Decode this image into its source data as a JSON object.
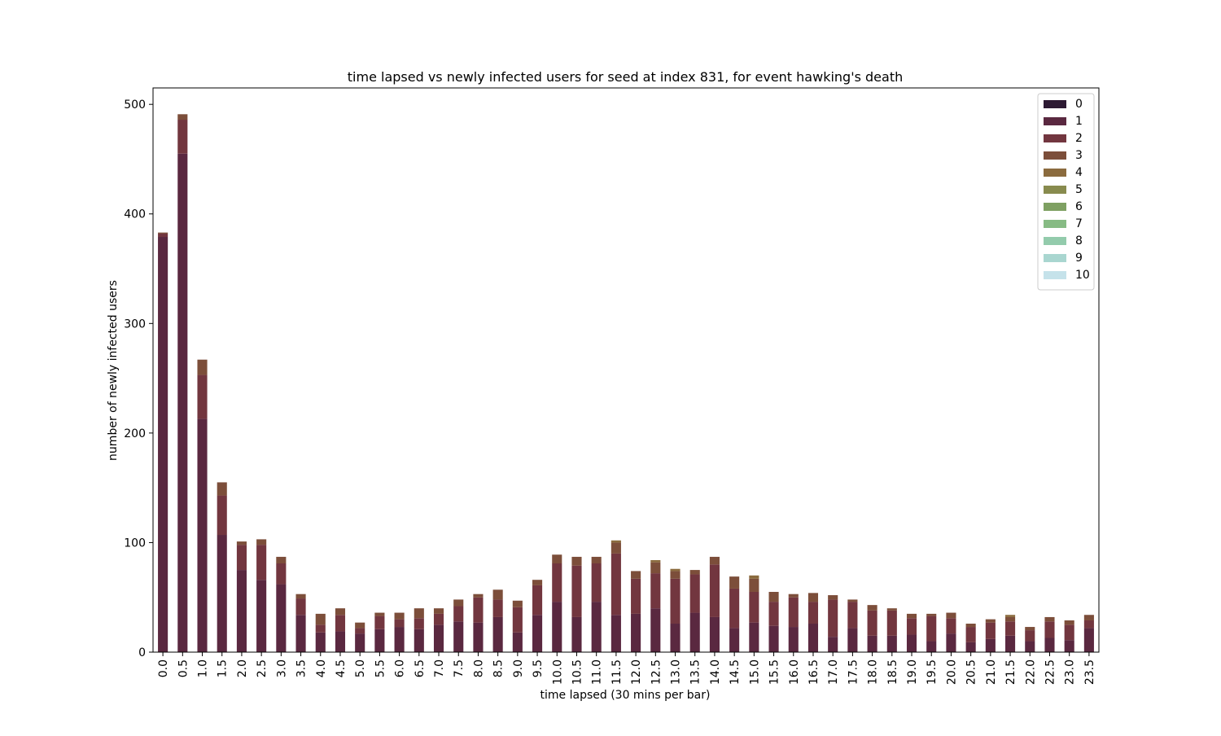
{
  "chart_data": {
    "type": "bar",
    "stacked": true,
    "title": "time lapsed vs newly infected users for seed at index 831, for event hawking's death",
    "xlabel": "time lapsed (30 mins per bar)",
    "ylabel": "number of newly infected users",
    "ylim": [
      0,
      515
    ],
    "yticks": [
      0,
      100,
      200,
      300,
      400,
      500
    ],
    "legend_position": "top-right",
    "categories": [
      "0.0",
      "0.5",
      "1.0",
      "1.5",
      "2.0",
      "2.5",
      "3.0",
      "3.5",
      "4.0",
      "4.5",
      "5.0",
      "5.5",
      "6.0",
      "6.5",
      "7.0",
      "7.5",
      "8.0",
      "8.5",
      "9.0",
      "9.5",
      "10.0",
      "10.5",
      "11.0",
      "11.5",
      "12.0",
      "12.5",
      "13.0",
      "13.5",
      "14.0",
      "14.5",
      "15.0",
      "15.5",
      "16.0",
      "16.5",
      "17.0",
      "17.5",
      "18.0",
      "18.5",
      "19.0",
      "19.5",
      "20.0",
      "20.5",
      "21.0",
      "21.5",
      "22.0",
      "22.5",
      "23.0",
      "23.5"
    ],
    "series": [
      {
        "name": "0",
        "color": "#2d1a33",
        "values": [
          0,
          0,
          0,
          0,
          0,
          0,
          0,
          0,
          0,
          0,
          0,
          0,
          0,
          0,
          0,
          0,
          0,
          0,
          0,
          0,
          0,
          0,
          0,
          0,
          0,
          0,
          0,
          0,
          0,
          0,
          0,
          0,
          0,
          0,
          0,
          0,
          0,
          0,
          0,
          0,
          0,
          0,
          0,
          0,
          0,
          0,
          0,
          0
        ]
      },
      {
        "name": "1",
        "color": "#5a2840",
        "values": [
          379,
          455,
          213,
          107,
          75,
          66,
          62,
          34,
          18,
          19,
          17,
          21,
          23,
          21,
          25,
          28,
          27,
          32,
          18,
          34,
          46,
          32,
          46,
          34,
          35,
          40,
          26,
          36,
          32,
          22,
          27,
          24,
          23,
          26,
          14,
          22,
          15,
          15,
          16,
          10,
          17,
          9,
          12,
          15,
          10,
          13,
          11,
          22
        ]
      },
      {
        "name": "2",
        "color": "#72363f",
        "values": [
          3,
          31,
          40,
          36,
          23,
          32,
          19,
          15,
          7,
          15,
          5,
          12,
          7,
          10,
          10,
          14,
          23,
          16,
          23,
          27,
          35,
          47,
          35,
          56,
          32,
          32,
          41,
          35,
          48,
          36,
          28,
          22,
          27,
          20,
          34,
          24,
          23,
          23,
          15,
          23,
          14,
          14,
          15,
          13,
          10,
          15,
          14,
          7
        ]
      },
      {
        "name": "3",
        "color": "#7c4e3a",
        "values": [
          1,
          5,
          14,
          12,
          3,
          5,
          6,
          4,
          10,
          6,
          5,
          3,
          6,
          9,
          5,
          6,
          3,
          9,
          6,
          5,
          8,
          8,
          6,
          10,
          7,
          10,
          7,
          4,
          7,
          11,
          12,
          9,
          3,
          8,
          4,
          2,
          5,
          2,
          4,
          2,
          5,
          3,
          3,
          4,
          3,
          4,
          4,
          5
        ]
      },
      {
        "name": "4",
        "color": "#8b6b3e",
        "values": [
          0,
          0,
          0,
          0,
          0,
          0,
          0,
          0,
          0,
          0,
          0,
          0,
          0,
          0,
          0,
          0,
          0,
          0,
          0,
          0,
          0,
          0,
          0,
          2,
          0,
          2,
          2,
          0,
          0,
          0,
          3,
          0,
          0,
          0,
          0,
          0,
          0,
          0,
          0,
          0,
          0,
          0,
          0,
          2,
          0,
          0,
          0,
          0
        ]
      },
      {
        "name": "5",
        "color": "#888b4e",
        "values": [
          0,
          0,
          0,
          0,
          0,
          0,
          0,
          0,
          0,
          0,
          0,
          0,
          0,
          0,
          0,
          0,
          0,
          0,
          0,
          0,
          0,
          0,
          0,
          0,
          0,
          0,
          0,
          0,
          0,
          0,
          0,
          0,
          0,
          0,
          0,
          0,
          0,
          0,
          0,
          0,
          0,
          0,
          0,
          0,
          0,
          0,
          0,
          0
        ]
      },
      {
        "name": "6",
        "color": "#7ea062",
        "values": [
          0,
          0,
          0,
          0,
          0,
          0,
          0,
          0,
          0,
          0,
          0,
          0,
          0,
          0,
          0,
          0,
          0,
          0,
          0,
          0,
          0,
          0,
          0,
          0,
          0,
          0,
          0,
          0,
          0,
          0,
          0,
          0,
          0,
          0,
          0,
          0,
          0,
          0,
          0,
          0,
          0,
          0,
          0,
          0,
          0,
          0,
          0,
          0
        ]
      },
      {
        "name": "7",
        "color": "#87bb84",
        "values": [
          0,
          0,
          0,
          0,
          0,
          0,
          0,
          0,
          0,
          0,
          0,
          0,
          0,
          0,
          0,
          0,
          0,
          0,
          0,
          0,
          0,
          0,
          0,
          0,
          0,
          0,
          0,
          0,
          0,
          0,
          0,
          0,
          0,
          0,
          0,
          0,
          0,
          0,
          0,
          0,
          0,
          0,
          0,
          0,
          0,
          0,
          0,
          0
        ]
      },
      {
        "name": "8",
        "color": "#93cbac",
        "values": [
          0,
          0,
          0,
          0,
          0,
          0,
          0,
          0,
          0,
          0,
          0,
          0,
          0,
          0,
          0,
          0,
          0,
          0,
          0,
          0,
          0,
          0,
          0,
          0,
          0,
          0,
          0,
          0,
          0,
          0,
          0,
          0,
          0,
          0,
          0,
          0,
          0,
          0,
          0,
          0,
          0,
          0,
          0,
          0,
          0,
          0,
          0,
          0
        ]
      },
      {
        "name": "9",
        "color": "#a9d6d0",
        "values": [
          0,
          0,
          0,
          0,
          0,
          0,
          0,
          0,
          0,
          0,
          0,
          0,
          0,
          0,
          0,
          0,
          0,
          0,
          0,
          0,
          0,
          0,
          0,
          0,
          0,
          0,
          0,
          0,
          0,
          0,
          0,
          0,
          0,
          0,
          0,
          0,
          0,
          0,
          0,
          0,
          0,
          0,
          0,
          0,
          0,
          0,
          0,
          0
        ]
      },
      {
        "name": "10",
        "color": "#c5e2ea",
        "values": [
          0,
          0,
          0,
          0,
          0,
          0,
          0,
          0,
          0,
          0,
          0,
          0,
          0,
          0,
          0,
          0,
          0,
          0,
          0,
          0,
          0,
          0,
          0,
          0,
          0,
          0,
          0,
          0,
          0,
          0,
          0,
          0,
          0,
          0,
          0,
          0,
          0,
          0,
          0,
          0,
          0,
          0,
          0,
          0,
          0,
          0,
          0,
          0
        ]
      }
    ]
  }
}
